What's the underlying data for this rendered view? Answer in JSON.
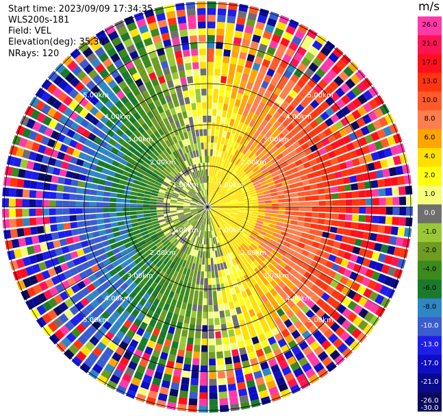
{
  "header": {
    "start_time": "Start time: 2023/09/09 17:34:35",
    "instrument": "WLS200s-181",
    "field": "Field: VEL",
    "elevation": "Elevation(deg): 35.30",
    "nrays": "NRays: 120"
  },
  "colorbar": {
    "unit": "m/s",
    "ticks": [
      "26.0",
      "21.0",
      "17.0",
      "13.0",
      "10.0",
      "8.0",
      "6.0",
      "4.0",
      "2.0",
      "1.0",
      "0.0",
      "-1.0",
      "-2.0",
      "-4.0",
      "-6.0",
      "-8.0",
      "-10.0",
      "-13.0",
      "-17.0",
      "-21.0",
      "-26.0",
      "-30.0"
    ],
    "colors": [
      "#ff3aa8",
      "#ff1453",
      "#ff0f1e",
      "#ff3512",
      "#ff5a2a",
      "#ff7e4c",
      "#ffa500",
      "#ffe000",
      "#ffff10",
      "#f5ff7a",
      "#6f6f6f",
      "#9ac834",
      "#6e9b22",
      "#3a8a1c",
      "#1a7a2b",
      "#2f86c5",
      "#3a5ccf",
      "#1e1eea",
      "#0e0ec4",
      "#0a0a8c",
      "#0a0a5c"
    ]
  },
  "chart_data": {
    "type": "ppi-velocity",
    "field": "VEL",
    "nrays": 120,
    "elevation_deg": 35.3,
    "ring_labels": [
      "1.00km",
      "2.00km",
      "3.00km",
      "4.00km",
      "5.00km"
    ],
    "value_unit": "m/s",
    "pattern": {
      "near_field": "gray/green (-2 to 1 m/s) west, yellow (1 to 4 m/s) east",
      "mid_field": "blue/green (-13 to -4 m/s) west, orange (6 to 13 m/s) east",
      "far_field": "noisy mixture of all colors"
    }
  }
}
